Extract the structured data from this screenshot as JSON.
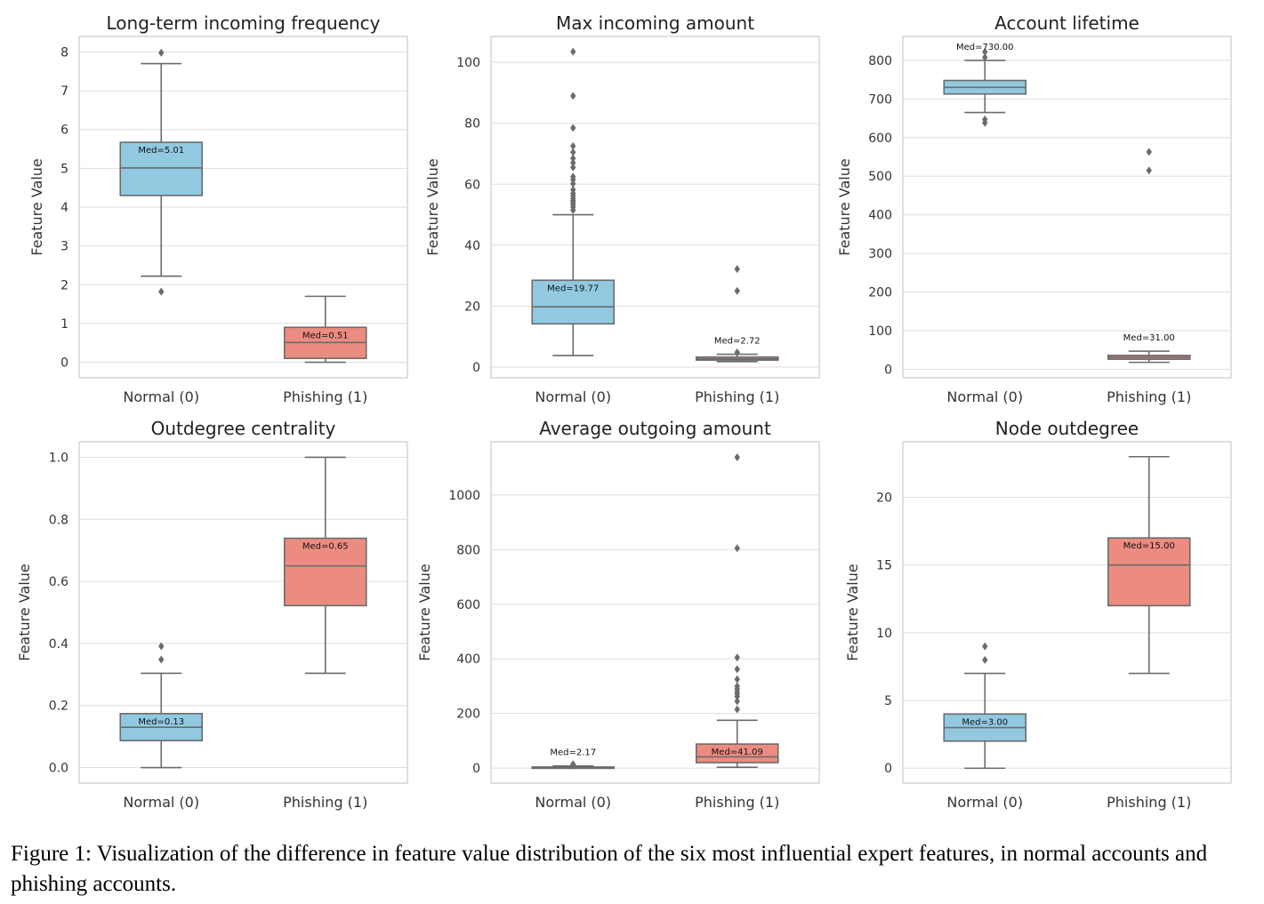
{
  "caption": "Figure 1: Visualization of the difference in feature value distribution of the six most influential expert features, in normal accounts and phishing accounts.",
  "colors": {
    "normal": "#92c9e1",
    "phishing": "#ec8c80",
    "line": "#6b6b6b",
    "grid": "#dedede",
    "frame": "#cccccc"
  },
  "chart_data": [
    {
      "type": "box",
      "title": "Long-term incoming frequency",
      "ylabel": "Feature Value",
      "categories": [
        "Normal (0)",
        "Phishing (1)"
      ],
      "ylim": [
        -0.4,
        8.4
      ],
      "yticks": [
        0,
        1,
        2,
        3,
        4,
        5,
        6,
        7,
        8
      ],
      "tick_labels": [
        "0",
        "1",
        "2",
        "3",
        "4",
        "5",
        "6",
        "7",
        "8"
      ],
      "boxes": [
        {
          "whislo": 2.22,
          "q1": 4.3,
          "med": 5.01,
          "q3": 5.67,
          "whishi": 7.7,
          "fliers": [
            1.82,
            7.98
          ],
          "med_label": "Med=5.01"
        },
        {
          "whislo": 0.0,
          "q1": 0.1,
          "med": 0.51,
          "q3": 0.9,
          "whishi": 1.7,
          "fliers": [],
          "med_label": "Med=0.51"
        }
      ]
    },
    {
      "type": "box",
      "title": "Max incoming amount",
      "ylabel": "Feature Value",
      "categories": [
        "Normal (0)",
        "Phishing (1)"
      ],
      "ylim": [
        -3.5,
        108.5
      ],
      "yticks": [
        0,
        20,
        40,
        60,
        80,
        100
      ],
      "tick_labels": [
        "0",
        "20",
        "40",
        "60",
        "80",
        "100"
      ],
      "boxes": [
        {
          "whislo": 3.8,
          "q1": 14.2,
          "med": 19.77,
          "q3": 28.5,
          "whishi": 50.0,
          "fliers": [
            51.5,
            52.5,
            53.3,
            54.0,
            54.6,
            55.3,
            56.2,
            57.0,
            58.2,
            60.2,
            61.5,
            62.5,
            65.5,
            67.0,
            68.5,
            70.5,
            72.5,
            78.5,
            89.0,
            103.5
          ],
          "med_label": "Med=19.77"
        },
        {
          "whislo": 1.8,
          "q1": 2.3,
          "med": 2.72,
          "q3": 3.3,
          "whishi": 4.2,
          "fliers": [
            4.8,
            25.0,
            32.2
          ],
          "med_label": "Med=2.72"
        }
      ]
    },
    {
      "type": "box",
      "title": "Account lifetime",
      "ylabel": "Feature Value",
      "categories": [
        "Normal (0)",
        "Phishing (1)"
      ],
      "ylim": [
        -22,
        862
      ],
      "yticks": [
        0,
        100,
        200,
        300,
        400,
        500,
        600,
        700,
        800
      ],
      "tick_labels": [
        "0",
        "100",
        "200",
        "300",
        "400",
        "500",
        "600",
        "700",
        "800"
      ],
      "boxes": [
        {
          "whislo": 665,
          "q1": 713,
          "med": 730.0,
          "q3": 748,
          "whishi": 800,
          "fliers": [
            638,
            647,
            808,
            822
          ],
          "med_label": "Med=730.00"
        },
        {
          "whislo": 18,
          "q1": 26,
          "med": 31.0,
          "q3": 36,
          "whishi": 47,
          "fliers": [
            515,
            563
          ],
          "med_label": "Med=31.00"
        }
      ]
    },
    {
      "type": "box",
      "title": "Outdegree centrality",
      "ylabel": "Feature Value",
      "categories": [
        "Normal (0)",
        "Phishing (1)"
      ],
      "ylim": [
        -0.05,
        1.05
      ],
      "yticks": [
        0,
        0.2,
        0.4,
        0.6,
        0.8,
        1.0
      ],
      "tick_labels": [
        "0.0",
        "0.2",
        "0.4",
        "0.6",
        "0.8",
        "1.0"
      ],
      "boxes": [
        {
          "whislo": 0.0,
          "q1": 0.087,
          "med": 0.13,
          "q3": 0.174,
          "whishi": 0.304,
          "fliers": [
            0.348,
            0.391
          ],
          "med_label": "Med=0.13"
        },
        {
          "whislo": 0.304,
          "q1": 0.522,
          "med": 0.65,
          "q3": 0.739,
          "whishi": 1.0,
          "fliers": [],
          "med_label": "Med=0.65"
        }
      ]
    },
    {
      "type": "box",
      "title": "Average outgoing amount",
      "ylabel": "Feature Value",
      "categories": [
        "Normal (0)",
        "Phishing (1)"
      ],
      "ylim": [
        -55,
        1195
      ],
      "yticks": [
        0,
        200,
        400,
        600,
        800,
        1000
      ],
      "tick_labels": [
        "0",
        "200",
        "400",
        "600",
        "800",
        "1000"
      ],
      "boxes": [
        {
          "whislo": 0.0,
          "q1": 1.0,
          "med": 2.17,
          "q3": 4.0,
          "whishi": 8.0,
          "fliers": [
            10,
            14
          ],
          "med_label": "Med=2.17"
        },
        {
          "whislo": 3.0,
          "q1": 20.0,
          "med": 41.09,
          "q3": 88.0,
          "whishi": 175.0,
          "fliers": [
            215,
            245,
            262,
            272,
            280,
            290,
            300,
            325,
            362,
            405,
            805,
            1138
          ],
          "med_label": "Med=41.09"
        }
      ]
    },
    {
      "type": "box",
      "title": "Node outdegree",
      "ylabel": "Feature Value",
      "categories": [
        "Normal (0)",
        "Phishing (1)"
      ],
      "ylim": [
        -1.1,
        24.1
      ],
      "yticks": [
        0,
        5,
        10,
        15,
        20
      ],
      "tick_labels": [
        "0",
        "5",
        "10",
        "15",
        "20"
      ],
      "boxes": [
        {
          "whislo": 0.0,
          "q1": 2.0,
          "med": 3.0,
          "q3": 4.0,
          "whishi": 7.0,
          "fliers": [
            8,
            9
          ],
          "med_label": "Med=3.00"
        },
        {
          "whislo": 7.0,
          "q1": 12.0,
          "med": 15.0,
          "q3": 17.0,
          "whishi": 23.0,
          "fliers": [],
          "med_label": "Med=15.00"
        }
      ]
    }
  ]
}
